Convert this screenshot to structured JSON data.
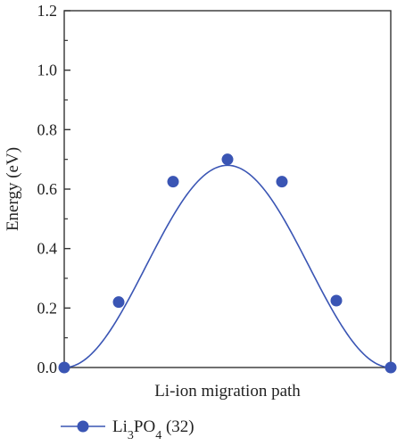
{
  "chart_data": {
    "type": "scatter",
    "title": "",
    "xlabel": "Li-ion migration path",
    "ylabel": "Energy (eV)",
    "ylim": [
      0.0,
      1.2
    ],
    "yticks": [
      "0.0",
      "0.2",
      "0.4",
      "0.6",
      "0.8",
      "1.0",
      "1.2"
    ],
    "x_ticklabels_shown": false,
    "grid": false,
    "legend_position": "bottom-left",
    "series": [
      {
        "name_base": "Li",
        "name_sub1": "3",
        "name_mid": "PO",
        "name_sub2": "4",
        "name_tail": " (32)",
        "color": "#3a55b4",
        "marker": "circle",
        "x": [
          0,
          1,
          2,
          3,
          4,
          5,
          6
        ],
        "y": [
          0.0,
          0.22,
          0.625,
          0.7,
          0.625,
          0.225,
          0.0
        ],
        "fit_curve": true
      }
    ]
  },
  "colors": {
    "series": "#3a55b4",
    "axis": "#333333"
  }
}
